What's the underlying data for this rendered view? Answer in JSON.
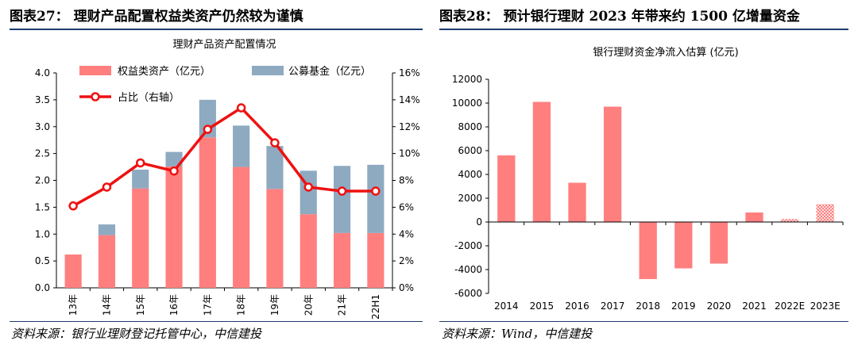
{
  "left_panel": {
    "heading": "图表27：  理财产品配置权益类资产仍然较为谨慎",
    "source": "资料来源：银行业理财登记托管中心，中信建投"
  },
  "right_panel": {
    "heading": "图表28：  预计银行理财 2023 年带来约 1500 亿增量资金",
    "source": "资料来源：Wind，中信建投"
  },
  "colors": {
    "equity": "#ff7f7f",
    "fund": "#8eaac1",
    "ratio": "#ee1111",
    "rule": "#1f3b70"
  },
  "chart_data": [
    {
      "type": "bar",
      "stacked": true,
      "title": "理财产品资产配置情况",
      "categories": [
        "13年",
        "14年",
        "15年",
        "16年",
        "17年",
        "18年",
        "19年",
        "20年",
        "21年",
        "22H1"
      ],
      "series": [
        {
          "name": "权益类资产（亿元）",
          "values": [
            0.62,
            0.98,
            1.85,
            2.26,
            2.8,
            2.25,
            1.84,
            1.37,
            1.02,
            1.02
          ]
        },
        {
          "name": "公募基金（亿元）",
          "values": [
            0.0,
            0.2,
            0.35,
            0.27,
            0.7,
            0.77,
            0.8,
            0.81,
            1.25,
            1.27
          ]
        }
      ],
      "line_series": {
        "name": "占比（右轴）",
        "axis": "right",
        "values": [
          6.1,
          7.5,
          9.3,
          8.7,
          11.8,
          13.4,
          10.8,
          7.5,
          7.2,
          7.2
        ]
      },
      "y_left": {
        "min": 0,
        "max": 4.0,
        "step": 0.5,
        "ticks": [
          "0.0",
          "0.5",
          "1.0",
          "1.5",
          "2.0",
          "2.5",
          "3.0",
          "3.5",
          "4.0"
        ]
      },
      "y_right": {
        "min": 0,
        "max": 16,
        "step": 2,
        "ticks": [
          "0%",
          "2%",
          "4%",
          "6%",
          "8%",
          "10%",
          "12%",
          "14%",
          "16%"
        ]
      },
      "legend_position": "top-left"
    },
    {
      "type": "bar",
      "title": "银行理财资金净流入估算 (亿元)",
      "categories": [
        "2014",
        "2015",
        "2016",
        "2017",
        "2018",
        "2019",
        "2020",
        "2021",
        "2022E",
        "2023E"
      ],
      "values": [
        5600,
        10100,
        3300,
        9700,
        -4800,
        -3900,
        -3500,
        800,
        250,
        1500
      ],
      "estimated": [
        false,
        false,
        false,
        false,
        false,
        false,
        false,
        false,
        true,
        true
      ],
      "ylim": [
        -6000,
        12000
      ],
      "y_ticks": [
        "-6000",
        "-4000",
        "-2000",
        "0",
        "2000",
        "4000",
        "6000",
        "8000",
        "10000",
        "12000"
      ]
    }
  ]
}
